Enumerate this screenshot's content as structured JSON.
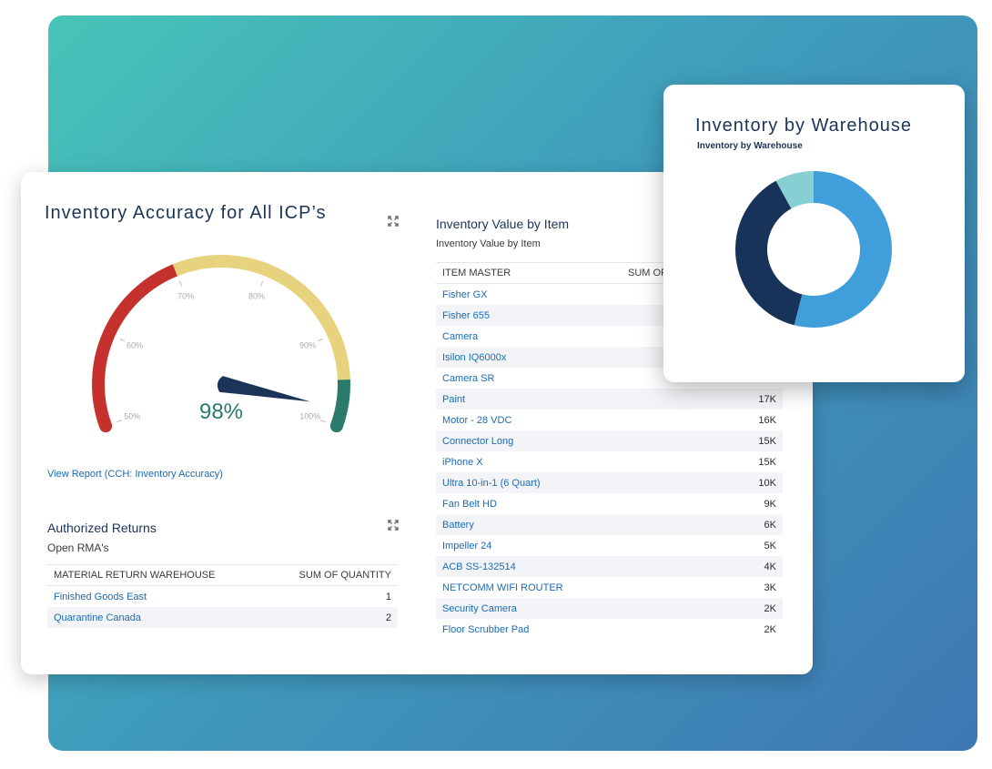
{
  "colors": {
    "gauge_red": "#c5322e",
    "gauge_yellow": "#e7d27d",
    "gauge_green": "#2a7b6b",
    "needle": "#1b3458",
    "link": "#1a6bb5",
    "donut_light_blue": "#409fda",
    "donut_navy": "#18335a",
    "donut_teal": "#86d0d4"
  },
  "gauge": {
    "title": "Inventory Accuracy for All ICP’s",
    "value": 98,
    "value_label": "98%",
    "min": 50,
    "max": 100,
    "tick_labels": [
      "50%",
      "60%",
      "70%",
      "80%",
      "90%",
      "100%"
    ],
    "bands": [
      {
        "from": 50,
        "to": 70,
        "color": "#c5322e"
      },
      {
        "from": 70,
        "to": 95,
        "color": "#e7d27d"
      },
      {
        "from": 95,
        "to": 100,
        "color": "#2a7b6b"
      }
    ],
    "link": "View Report (CCH: Inventory Accuracy)",
    "expand_icon": "expand-icon"
  },
  "returns": {
    "title": "Authorized Returns",
    "subtitle": "Open RMA's",
    "columns": [
      "MATERIAL RETURN WAREHOUSE",
      "SUM OF QUANTITY"
    ],
    "rows": [
      {
        "name": "Finished Goods East",
        "value": "1"
      },
      {
        "name": "Quarantine Canada",
        "value": "2"
      }
    ]
  },
  "value_by_item": {
    "title": "Inventory Value by Item",
    "subtitle": "Inventory Value by Item",
    "columns": [
      "ITEM MASTER",
      "SUM OF"
    ],
    "rows": [
      {
        "name": "Fisher GX",
        "value": ""
      },
      {
        "name": "Fisher 655",
        "value": ""
      },
      {
        "name": "Camera",
        "value": ""
      },
      {
        "name": "Isilon IQ6000x",
        "value": ""
      },
      {
        "name": "Camera SR",
        "value": ""
      },
      {
        "name": "Paint",
        "value": "17K"
      },
      {
        "name": "Motor - 28 VDC",
        "value": "16K"
      },
      {
        "name": "Connector Long",
        "value": "15K"
      },
      {
        "name": "iPhone X",
        "value": "15K"
      },
      {
        "name": "Ultra 10-in-1 (6 Quart)",
        "value": "10K"
      },
      {
        "name": "Fan Belt HD",
        "value": "9K"
      },
      {
        "name": "Battery",
        "value": "6K"
      },
      {
        "name": "Impeller 24",
        "value": "5K"
      },
      {
        "name": "ACB SS-132514",
        "value": "4K"
      },
      {
        "name": "NETCOMM WIFI ROUTER",
        "value": "3K"
      },
      {
        "name": "Security Camera",
        "value": "2K"
      },
      {
        "name": "Floor Scrubber Pad",
        "value": "2K"
      }
    ]
  },
  "warehouse": {
    "title": "Inventory by Warehouse",
    "subtitle": "Inventory by Warehouse",
    "chart_data": {
      "type": "pie",
      "slices": [
        {
          "value": 54,
          "color": "#409fda"
        },
        {
          "value": 38,
          "color": "#18335a"
        },
        {
          "value": 8,
          "color": "#86d0d4"
        }
      ]
    }
  }
}
